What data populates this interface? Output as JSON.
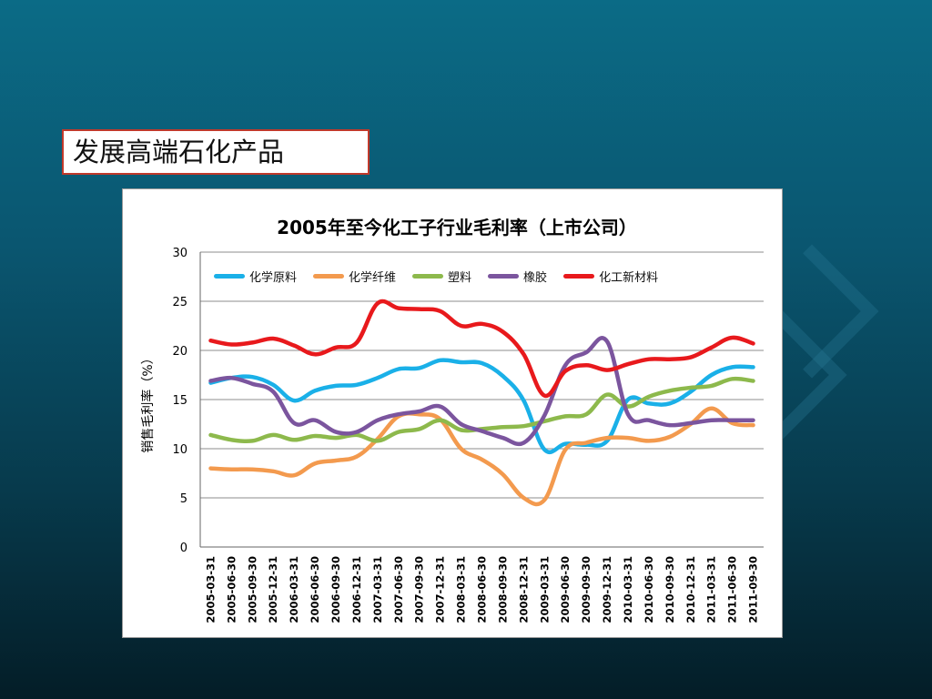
{
  "slide": {
    "title": "发展高端石化产品"
  },
  "chart_data": {
    "type": "line",
    "title": "2005年至今化工子行业毛利率（上市公司）",
    "xlabel": "",
    "ylabel": "销售毛利率（%）",
    "ylim": [
      0,
      30
    ],
    "yticks": [
      0,
      5,
      10,
      15,
      20,
      25,
      30
    ],
    "grid": true,
    "legend_position": "top",
    "x": [
      "2005-03-31",
      "2005-06-30",
      "2005-09-30",
      "2005-12-31",
      "2006-03-31",
      "2006-06-30",
      "2006-09-30",
      "2006-12-31",
      "2007-03-31",
      "2007-06-30",
      "2007-09-30",
      "2007-12-31",
      "2008-03-31",
      "2008-06-30",
      "2008-09-30",
      "2008-12-31",
      "2009-03-31",
      "2009-06-30",
      "2009-09-30",
      "2009-12-31",
      "2010-03-31",
      "2010-06-30",
      "2010-09-30",
      "2010-12-31",
      "2011-03-31",
      "2011-06-30",
      "2011-09-30"
    ],
    "series": [
      {
        "name": "化学原料",
        "color": "#1ab0e8",
        "values": [
          16.7,
          17.2,
          17.3,
          16.5,
          14.9,
          15.9,
          16.4,
          16.5,
          17.2,
          18.1,
          18.2,
          19.0,
          18.8,
          18.7,
          17.4,
          14.9,
          9.9,
          10.5,
          10.4,
          10.8,
          15.0,
          14.6,
          14.6,
          15.8,
          17.5,
          18.3,
          18.3
        ]
      },
      {
        "name": "化学纤维",
        "color": "#f39a4e",
        "values": [
          8.0,
          7.9,
          7.9,
          7.7,
          7.3,
          8.5,
          8.8,
          9.2,
          11.0,
          13.3,
          13.5,
          13.0,
          10.0,
          8.9,
          7.4,
          5.0,
          4.8,
          9.9,
          10.6,
          11.1,
          11.1,
          10.8,
          11.2,
          12.5,
          14.1,
          12.6,
          12.4
        ]
      },
      {
        "name": "塑料",
        "color": "#8db94c",
        "values": [
          11.4,
          10.9,
          10.8,
          11.4,
          10.9,
          11.3,
          11.1,
          11.4,
          10.8,
          11.7,
          12.0,
          12.9,
          11.9,
          12.0,
          12.2,
          12.3,
          12.8,
          13.3,
          13.5,
          15.5,
          14.3,
          15.3,
          15.9,
          16.2,
          16.4,
          17.1,
          16.9
        ]
      },
      {
        "name": "橡胶",
        "color": "#7b559e",
        "values": [
          16.9,
          17.2,
          16.6,
          15.8,
          12.6,
          12.9,
          11.7,
          11.7,
          12.9,
          13.5,
          13.8,
          14.3,
          12.5,
          11.8,
          11.1,
          10.6,
          13.4,
          18.5,
          19.8,
          20.9,
          13.5,
          12.9,
          12.4,
          12.6,
          12.9,
          12.9,
          12.9
        ]
      },
      {
        "name": "化工新材料",
        "color": "#e8191c",
        "values": [
          21.0,
          20.6,
          20.8,
          21.2,
          20.5,
          19.6,
          20.3,
          20.8,
          24.8,
          24.3,
          24.2,
          24.0,
          22.5,
          22.7,
          21.9,
          19.6,
          15.4,
          17.9,
          18.5,
          18.0,
          18.6,
          19.1,
          19.1,
          19.3,
          20.3,
          21.3,
          20.7
        ]
      }
    ]
  }
}
